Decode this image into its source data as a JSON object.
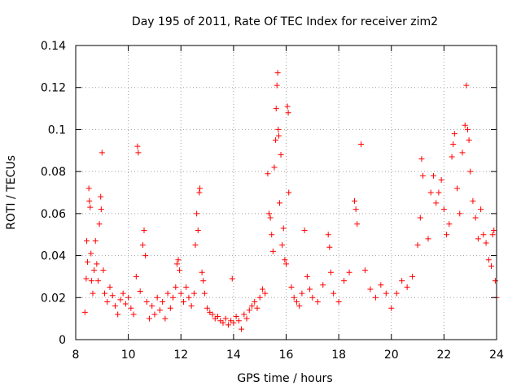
{
  "chart_data": {
    "type": "scatter",
    "title": "Day 195 of 2011, Rate Of TEC Index for receiver zim2",
    "xlabel": "GPS time / hours",
    "ylabel": "ROTI / TECUs",
    "xlim": [
      8,
      24
    ],
    "ylim": [
      0,
      0.14
    ],
    "grid": true,
    "marker": "+",
    "color": "#ff0000",
    "x_ticks": [
      8,
      10,
      12,
      14,
      16,
      18,
      20,
      22,
      24
    ],
    "x_tick_labels": [
      "8",
      "10",
      "12",
      "14",
      "16",
      "18",
      "20",
      "22",
      "24"
    ],
    "y_ticks": [
      0,
      0.02,
      0.04,
      0.06,
      0.08,
      0.1,
      0.12,
      0.14
    ],
    "y_tick_labels": [
      "0",
      "0.02",
      "0.04",
      "0.06",
      "0.08",
      "0.1",
      "0.12",
      "0.14"
    ],
    "series": [
      {
        "name": "ROTI",
        "points": [
          [
            8.35,
            0.013
          ],
          [
            8.4,
            0.029
          ],
          [
            8.42,
            0.047
          ],
          [
            8.45,
            0.037
          ],
          [
            8.5,
            0.072
          ],
          [
            8.52,
            0.066
          ],
          [
            8.55,
            0.063
          ],
          [
            8.58,
            0.041
          ],
          [
            8.6,
            0.028
          ],
          [
            8.65,
            0.022
          ],
          [
            8.7,
            0.033
          ],
          [
            8.75,
            0.047
          ],
          [
            8.8,
            0.036
          ],
          [
            8.85,
            0.028
          ],
          [
            8.9,
            0.055
          ],
          [
            8.95,
            0.068
          ],
          [
            8.97,
            0.062
          ],
          [
            9.0,
            0.089
          ],
          [
            9.05,
            0.033
          ],
          [
            9.1,
            0.022
          ],
          [
            9.2,
            0.018
          ],
          [
            9.3,
            0.025
          ],
          [
            9.4,
            0.021
          ],
          [
            9.5,
            0.016
          ],
          [
            9.6,
            0.012
          ],
          [
            9.7,
            0.019
          ],
          [
            9.8,
            0.022
          ],
          [
            9.9,
            0.017
          ],
          [
            10.0,
            0.02
          ],
          [
            10.1,
            0.015
          ],
          [
            10.2,
            0.012
          ],
          [
            10.3,
            0.03
          ],
          [
            10.35,
            0.092
          ],
          [
            10.38,
            0.089
          ],
          [
            10.45,
            0.023
          ],
          [
            10.55,
            0.045
          ],
          [
            10.6,
            0.052
          ],
          [
            10.65,
            0.04
          ],
          [
            10.7,
            0.018
          ],
          [
            10.8,
            0.01
          ],
          [
            10.9,
            0.016
          ],
          [
            11.0,
            0.012
          ],
          [
            11.1,
            0.02
          ],
          [
            11.2,
            0.014
          ],
          [
            11.3,
            0.018
          ],
          [
            11.4,
            0.01
          ],
          [
            11.5,
            0.022
          ],
          [
            11.6,
            0.015
          ],
          [
            11.7,
            0.02
          ],
          [
            11.8,
            0.025
          ],
          [
            11.85,
            0.036
          ],
          [
            11.9,
            0.038
          ],
          [
            11.95,
            0.033
          ],
          [
            12.0,
            0.022
          ],
          [
            12.1,
            0.018
          ],
          [
            12.2,
            0.025
          ],
          [
            12.3,
            0.02
          ],
          [
            12.4,
            0.016
          ],
          [
            12.5,
            0.022
          ],
          [
            12.55,
            0.045
          ],
          [
            12.6,
            0.06
          ],
          [
            12.65,
            0.052
          ],
          [
            12.7,
            0.07
          ],
          [
            12.72,
            0.072
          ],
          [
            12.8,
            0.032
          ],
          [
            12.85,
            0.028
          ],
          [
            12.9,
            0.022
          ],
          [
            13.0,
            0.015
          ],
          [
            13.1,
            0.013
          ],
          [
            13.2,
            0.012
          ],
          [
            13.3,
            0.01
          ],
          [
            13.4,
            0.011
          ],
          [
            13.5,
            0.009
          ],
          [
            13.6,
            0.008
          ],
          [
            13.7,
            0.01
          ],
          [
            13.8,
            0.007
          ],
          [
            13.9,
            0.009
          ],
          [
            13.95,
            0.029
          ],
          [
            14.0,
            0.008
          ],
          [
            14.1,
            0.011
          ],
          [
            14.2,
            0.009
          ],
          [
            14.3,
            0.005
          ],
          [
            14.4,
            0.012
          ],
          [
            14.5,
            0.01
          ],
          [
            14.6,
            0.014
          ],
          [
            14.7,
            0.016
          ],
          [
            14.8,
            0.018
          ],
          [
            14.9,
            0.015
          ],
          [
            15.0,
            0.02
          ],
          [
            15.1,
            0.024
          ],
          [
            15.2,
            0.022
          ],
          [
            15.3,
            0.079
          ],
          [
            15.35,
            0.06
          ],
          [
            15.4,
            0.058
          ],
          [
            15.45,
            0.05
          ],
          [
            15.5,
            0.042
          ],
          [
            15.55,
            0.082
          ],
          [
            15.6,
            0.095
          ],
          [
            15.62,
            0.11
          ],
          [
            15.65,
            0.121
          ],
          [
            15.68,
            0.127
          ],
          [
            15.7,
            0.1
          ],
          [
            15.72,
            0.097
          ],
          [
            15.75,
            0.065
          ],
          [
            15.8,
            0.088
          ],
          [
            15.85,
            0.045
          ],
          [
            15.9,
            0.053
          ],
          [
            15.95,
            0.038
          ],
          [
            16.0,
            0.036
          ],
          [
            16.05,
            0.111
          ],
          [
            16.08,
            0.108
          ],
          [
            16.1,
            0.07
          ],
          [
            16.2,
            0.025
          ],
          [
            16.3,
            0.02
          ],
          [
            16.4,
            0.018
          ],
          [
            16.5,
            0.016
          ],
          [
            16.6,
            0.022
          ],
          [
            16.7,
            0.052
          ],
          [
            16.8,
            0.03
          ],
          [
            16.9,
            0.024
          ],
          [
            17.0,
            0.02
          ],
          [
            17.2,
            0.018
          ],
          [
            17.4,
            0.026
          ],
          [
            17.6,
            0.05
          ],
          [
            17.65,
            0.044
          ],
          [
            17.7,
            0.032
          ],
          [
            17.8,
            0.022
          ],
          [
            18.0,
            0.018
          ],
          [
            18.2,
            0.028
          ],
          [
            18.4,
            0.032
          ],
          [
            18.6,
            0.066
          ],
          [
            18.65,
            0.062
          ],
          [
            18.7,
            0.055
          ],
          [
            18.85,
            0.093
          ],
          [
            19.0,
            0.033
          ],
          [
            19.2,
            0.024
          ],
          [
            19.4,
            0.02
          ],
          [
            19.6,
            0.026
          ],
          [
            19.8,
            0.022
          ],
          [
            20.0,
            0.015
          ],
          [
            20.2,
            0.022
          ],
          [
            20.4,
            0.028
          ],
          [
            20.6,
            0.025
          ],
          [
            20.8,
            0.03
          ],
          [
            21.0,
            0.045
          ],
          [
            21.1,
            0.058
          ],
          [
            21.15,
            0.086
          ],
          [
            21.2,
            0.078
          ],
          [
            21.4,
            0.048
          ],
          [
            21.5,
            0.07
          ],
          [
            21.6,
            0.078
          ],
          [
            21.7,
            0.065
          ],
          [
            21.8,
            0.07
          ],
          [
            21.9,
            0.076
          ],
          [
            22.0,
            0.062
          ],
          [
            22.1,
            0.05
          ],
          [
            22.2,
            0.055
          ],
          [
            22.3,
            0.087
          ],
          [
            22.35,
            0.093
          ],
          [
            22.4,
            0.098
          ],
          [
            22.5,
            0.072
          ],
          [
            22.6,
            0.06
          ],
          [
            22.7,
            0.089
          ],
          [
            22.8,
            0.102
          ],
          [
            22.85,
            0.121
          ],
          [
            22.9,
            0.1
          ],
          [
            22.95,
            0.095
          ],
          [
            23.0,
            0.08
          ],
          [
            23.1,
            0.066
          ],
          [
            23.2,
            0.058
          ],
          [
            23.3,
            0.048
          ],
          [
            23.4,
            0.062
          ],
          [
            23.5,
            0.05
          ],
          [
            23.6,
            0.046
          ],
          [
            23.7,
            0.038
          ],
          [
            23.8,
            0.035
          ],
          [
            23.85,
            0.05
          ],
          [
            23.9,
            0.052
          ],
          [
            23.95,
            0.028
          ],
          [
            24.0,
            0.02
          ]
        ]
      }
    ]
  }
}
